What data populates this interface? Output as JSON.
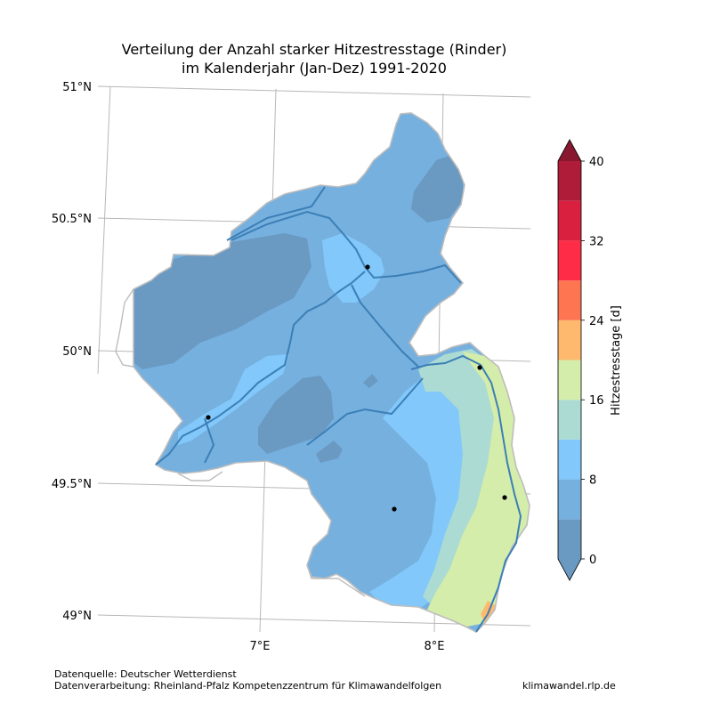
{
  "title": {
    "line1": "Verteilung der Anzahl starker Hitzestresstage (Rinder)",
    "line2": "im Kalenderjahr (Jan-Dez) 1991-2020"
  },
  "map": {
    "lat_labels": [
      "51°N",
      "50.5°N",
      "50°N",
      "49.5°N",
      "49°N"
    ],
    "lon_labels": [
      "7°E",
      "8°E"
    ],
    "markers": [
      "city-marker-1",
      "city-marker-2",
      "city-marker-3",
      "city-marker-4",
      "city-marker-5"
    ]
  },
  "colorbar": {
    "label": "Hitzestresstage [d]",
    "ticks": [
      "0",
      "8",
      "16",
      "24",
      "32",
      "40"
    ],
    "levels": [
      0,
      4,
      8,
      12,
      16,
      20,
      24,
      28,
      32,
      36,
      40
    ],
    "colors": [
      "#6a99c2",
      "#76b0df",
      "#82c8fa",
      "#abdbd2",
      "#d5edaa",
      "#feb96e",
      "#fe7552",
      "#fe2c46",
      "#d9213f",
      "#af1c39"
    ],
    "extend_low_color": "#6a99c2",
    "extend_high_color": "#88182f"
  },
  "footer": {
    "source": "Datenquelle: Deutscher Wetterdienst",
    "processing": "Datenverarbeitung: Rheinland-Pfalz Kompetenzzentrum für Klimawandelfolgen",
    "website": "klimawandel.rlp.de"
  }
}
